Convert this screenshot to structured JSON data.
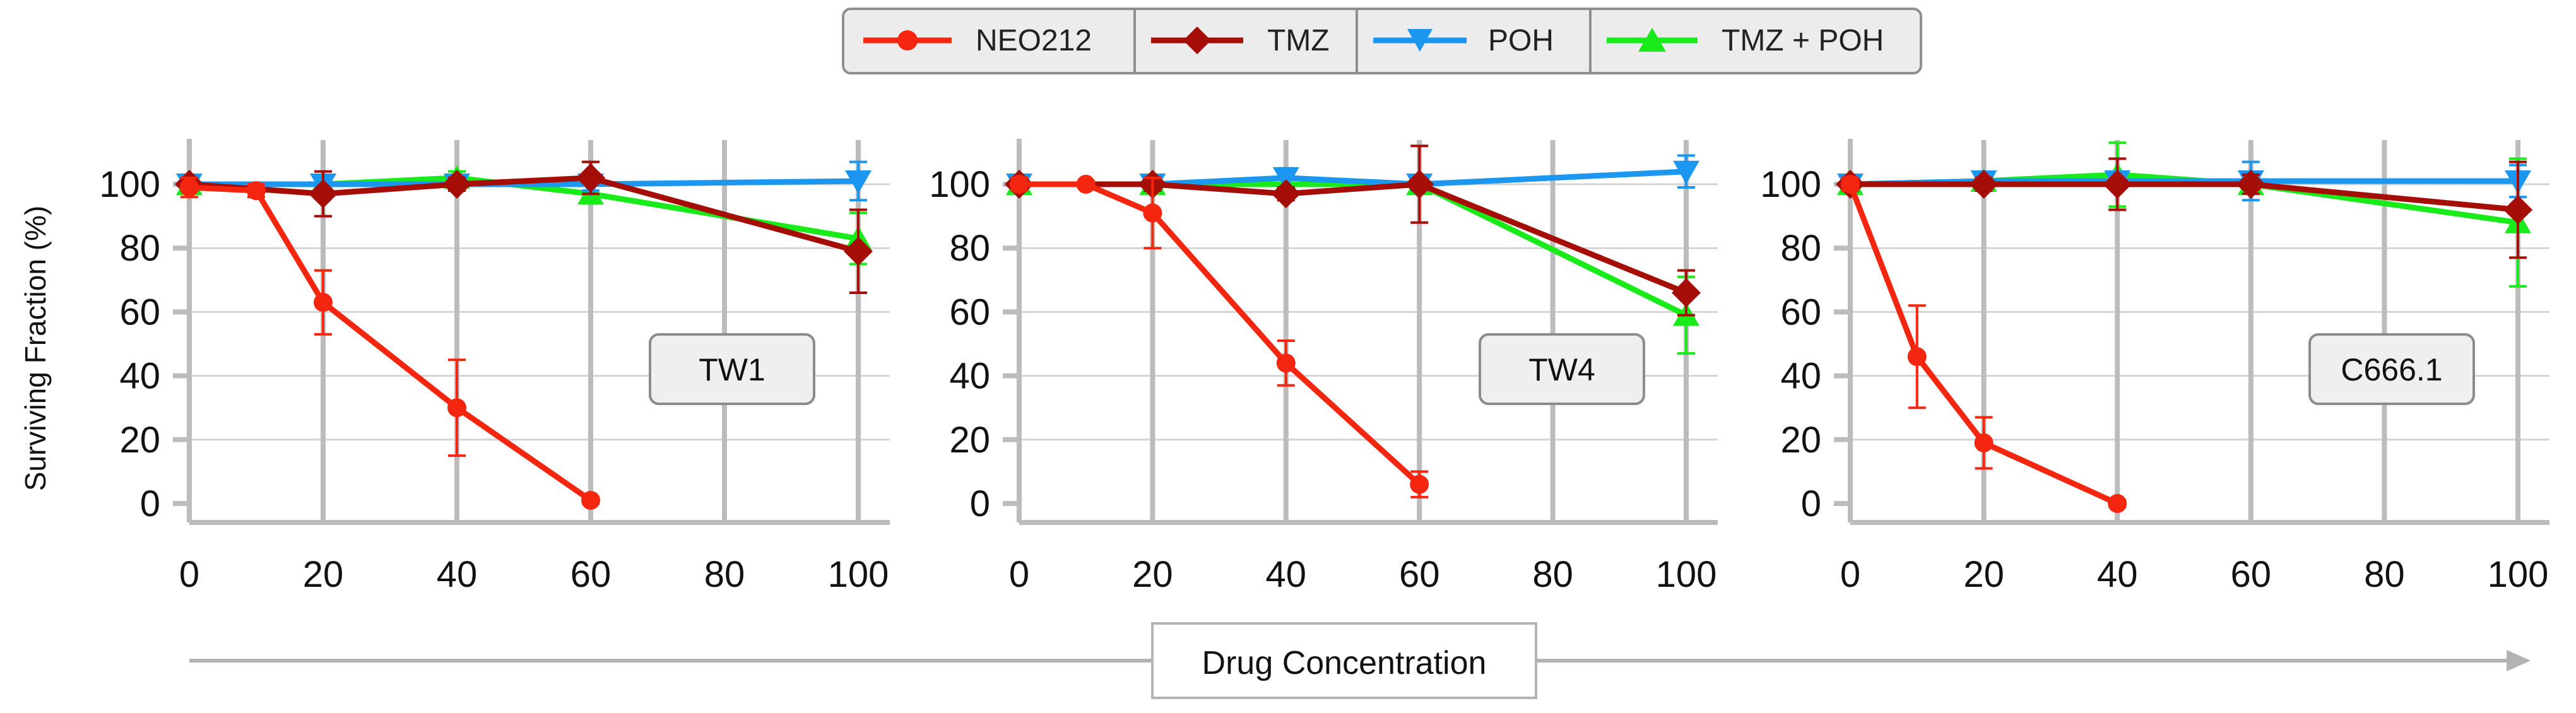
{
  "legend": [
    {
      "name": "NEO212",
      "color": "#f5260f",
      "marker": "circle"
    },
    {
      "name": "TMZ",
      "color": "#a50d07",
      "marker": "diamond"
    },
    {
      "name": "POH",
      "color": "#1c97f0",
      "marker": "triangle-down"
    },
    {
      "name": "TMZ + POH",
      "color": "#19ea19",
      "marker": "triangle-up"
    }
  ],
  "shared_axis_label": "Drug Concentration",
  "chart_data": [
    {
      "type": "line",
      "panel_label": "TW1",
      "ylabel": "Surviving Fraction (%)",
      "xlim": [
        0,
        100
      ],
      "ylim": [
        0,
        100
      ],
      "x_ticks": [
        0,
        20,
        40,
        60,
        80,
        100
      ],
      "y_ticks": [
        0,
        20,
        40,
        60,
        80,
        100
      ],
      "grid": true,
      "series": [
        {
          "name": "NEO212",
          "x": [
            0,
            10,
            20,
            40,
            60
          ],
          "y": [
            99,
            98,
            63,
            30,
            1
          ],
          "err": [
            3,
            2,
            10,
            15,
            1
          ]
        },
        {
          "name": "TMZ",
          "x": [
            0,
            20,
            40,
            60,
            100
          ],
          "y": [
            100,
            97,
            100,
            102,
            79
          ],
          "err": [
            2,
            7,
            2,
            5,
            13
          ]
        },
        {
          "name": "POH",
          "x": [
            0,
            20,
            40,
            60,
            100
          ],
          "y": [
            100,
            100,
            100,
            100,
            101
          ],
          "err": [
            2,
            2,
            2,
            2,
            6
          ]
        },
        {
          "name": "TMZ + POH",
          "x": [
            0,
            20,
            40,
            60,
            100
          ],
          "y": [
            100,
            100,
            102,
            97,
            83
          ],
          "err": [
            2,
            2,
            2,
            3,
            8
          ]
        }
      ]
    },
    {
      "type": "line",
      "panel_label": "TW4",
      "xlim": [
        0,
        100
      ],
      "ylim": [
        0,
        100
      ],
      "x_ticks": [
        0,
        20,
        40,
        60,
        80,
        100
      ],
      "y_ticks": [
        0,
        20,
        40,
        60,
        80,
        100
      ],
      "grid": true,
      "series": [
        {
          "name": "NEO212",
          "x": [
            0,
            10,
            20,
            40,
            60
          ],
          "y": [
            100,
            100,
            91,
            44,
            6
          ],
          "err": [
            2,
            1,
            11,
            7,
            4
          ]
        },
        {
          "name": "TMZ",
          "x": [
            0,
            20,
            40,
            60,
            100
          ],
          "y": [
            100,
            100,
            97,
            100,
            66
          ],
          "err": [
            2,
            2,
            2,
            12,
            7
          ]
        },
        {
          "name": "POH",
          "x": [
            0,
            20,
            40,
            60,
            100
          ],
          "y": [
            100,
            100,
            102,
            100,
            104
          ],
          "err": [
            2,
            2,
            3,
            2,
            5
          ]
        },
        {
          "name": "TMZ + POH",
          "x": [
            0,
            20,
            40,
            60,
            100
          ],
          "y": [
            100,
            100,
            100,
            100,
            59
          ],
          "err": [
            2,
            2,
            2,
            2,
            12
          ]
        }
      ]
    },
    {
      "type": "line",
      "panel_label": "C666.1",
      "xlim": [
        0,
        100
      ],
      "ylim": [
        0,
        100
      ],
      "x_ticks": [
        0,
        20,
        40,
        60,
        80,
        100
      ],
      "y_ticks": [
        0,
        20,
        40,
        60,
        80,
        100
      ],
      "grid": true,
      "series": [
        {
          "name": "NEO212",
          "x": [
            0,
            10,
            20,
            40
          ],
          "y": [
            100,
            46,
            19,
            0
          ],
          "err": [
            2,
            16,
            8,
            1
          ]
        },
        {
          "name": "TMZ",
          "x": [
            0,
            20,
            40,
            60,
            100
          ],
          "y": [
            100,
            100,
            100,
            100,
            92
          ],
          "err": [
            2,
            2,
            8,
            3,
            15
          ]
        },
        {
          "name": "POH",
          "x": [
            0,
            20,
            40,
            60,
            100
          ],
          "y": [
            100,
            101,
            101,
            101,
            101
          ],
          "err": [
            2,
            2,
            2,
            6,
            5
          ]
        },
        {
          "name": "TMZ + POH",
          "x": [
            0,
            20,
            40,
            60,
            100
          ],
          "y": [
            100,
            101,
            103,
            100,
            88
          ],
          "err": [
            2,
            2,
            10,
            2,
            20
          ]
        }
      ]
    }
  ]
}
